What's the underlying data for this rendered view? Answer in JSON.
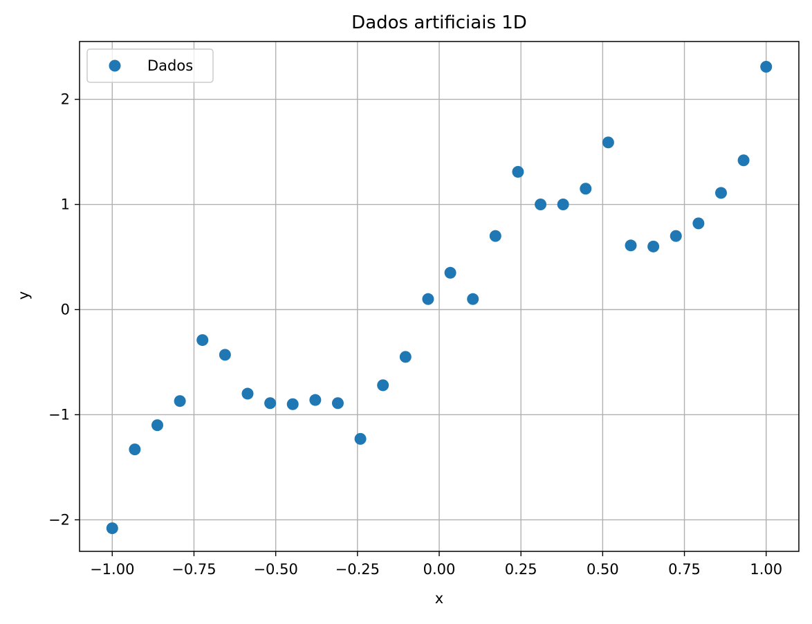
{
  "chart_data": {
    "type": "scatter",
    "title": "Dados artificiais 1D",
    "xlabel": "x",
    "ylabel": "y",
    "xlim": [
      -1.1,
      1.1
    ],
    "ylim": [
      -2.3,
      2.55
    ],
    "grid": true,
    "legend_position": "upper-left",
    "xticks": [
      -1.0,
      -0.75,
      -0.5,
      -0.25,
      0.0,
      0.25,
      0.5,
      0.75,
      1.0
    ],
    "xtick_labels": [
      "−1.00",
      "−0.75",
      "−0.50",
      "−0.25",
      "0.00",
      "0.25",
      "0.50",
      "0.75",
      "1.00"
    ],
    "yticks": [
      -2,
      -1,
      0,
      1,
      2
    ],
    "ytick_labels": [
      "−2",
      "−1",
      "0",
      "1",
      "2"
    ],
    "series": [
      {
        "name": "Dados",
        "color": "#1f77b4",
        "x": [
          -1.0,
          -0.931,
          -0.862,
          -0.793,
          -0.724,
          -0.655,
          -0.586,
          -0.517,
          -0.448,
          -0.379,
          -0.31,
          -0.241,
          -0.172,
          -0.103,
          -0.034,
          0.034,
          0.103,
          0.172,
          0.241,
          0.31,
          0.379,
          0.448,
          0.517,
          0.586,
          0.655,
          0.724,
          0.793,
          0.862,
          0.931,
          1.0
        ],
        "y": [
          -2.08,
          -1.33,
          -1.1,
          -0.87,
          -0.29,
          -0.43,
          -0.8,
          -0.89,
          -0.9,
          -0.86,
          -0.89,
          -1.23,
          -0.72,
          -0.45,
          0.1,
          0.35,
          0.1,
          0.7,
          1.31,
          1.0,
          1.0,
          1.15,
          1.59,
          0.61,
          0.6,
          0.7,
          0.82,
          1.11,
          1.42,
          2.31
        ]
      }
    ]
  }
}
